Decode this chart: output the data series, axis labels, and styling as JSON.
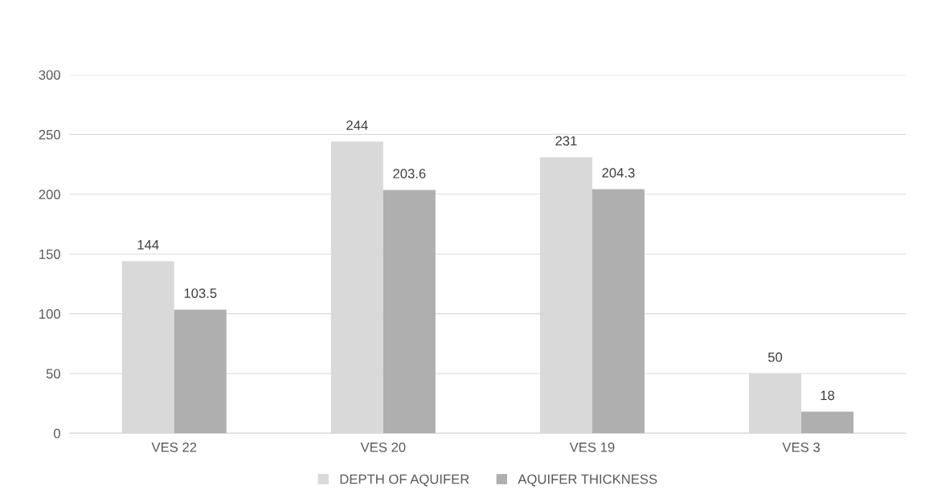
{
  "chart_data": {
    "type": "bar",
    "categories": [
      "VES 22",
      "VES 20",
      "VES 19",
      "VES 3"
    ],
    "series": [
      {
        "name": "DEPTH OF AQUIFER",
        "color": "#d9d9d9",
        "values": [
          144,
          244,
          231,
          50
        ]
      },
      {
        "name": "AQUIFER THICKNESS",
        "color": "#afafaf",
        "values": [
          103.5,
          203.6,
          204.3,
          18
        ]
      }
    ],
    "ylim": [
      0,
      300
    ],
    "yticks": [
      0,
      50,
      100,
      150,
      200,
      250,
      300
    ],
    "grid": "y",
    "legend": "bottom",
    "data_labels": true
  }
}
